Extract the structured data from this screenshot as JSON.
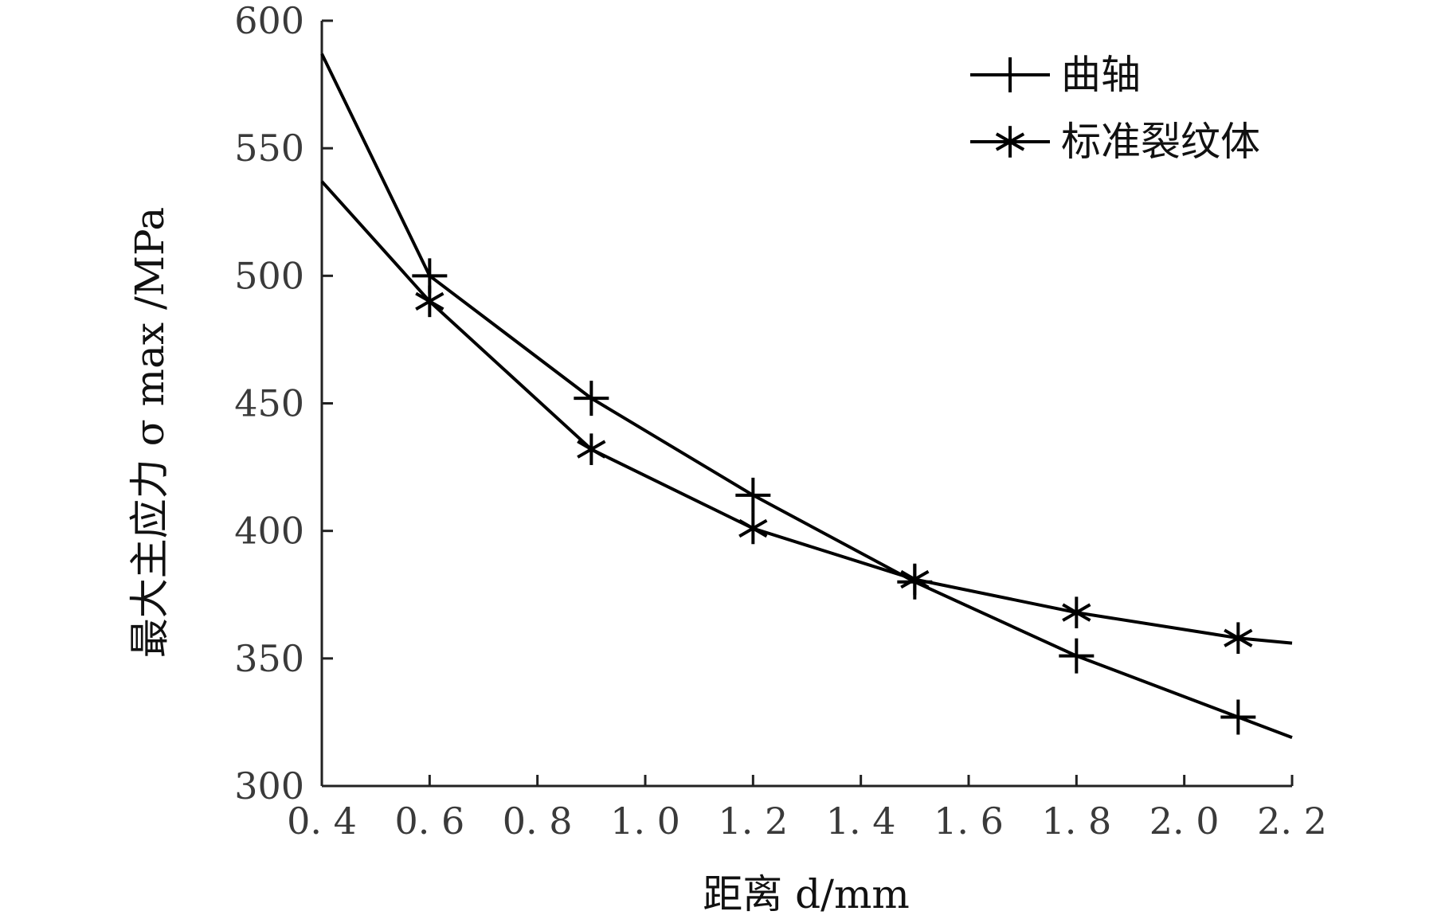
{
  "chart_data": {
    "type": "line",
    "xlabel": "距离 d/mm",
    "ylabel": "最大主应力 σ max /MPa",
    "xlim": [
      0.4,
      2.2
    ],
    "ylim": [
      300,
      600
    ],
    "x_ticks": [
      "0. 4",
      "0. 6",
      "0. 8",
      "1. 0",
      "1. 2",
      "1. 4",
      "1. 6",
      "1. 8",
      "2. 0",
      "2. 2"
    ],
    "y_ticks": [
      "300",
      "350",
      "400",
      "450",
      "500",
      "550",
      "600"
    ],
    "grid": false,
    "legend_position": "top-right",
    "series": [
      {
        "name": "曲轴",
        "marker": "plus",
        "x": [
          0.4,
          0.6,
          0.9,
          1.2,
          1.5,
          1.8,
          2.1,
          2.2
        ],
        "y": [
          587,
          500,
          452,
          414,
          380,
          351,
          327,
          319
        ],
        "marker_x": [
          0.6,
          0.9,
          1.2,
          1.5,
          1.8,
          2.1
        ]
      },
      {
        "name": "标准裂纹体",
        "marker": "asterisk",
        "x": [
          0.4,
          0.6,
          0.9,
          1.2,
          1.5,
          1.8,
          2.1,
          2.2
        ],
        "y": [
          537,
          490,
          432,
          401,
          381,
          368,
          358,
          356
        ],
        "marker_x": [
          0.6,
          0.9,
          1.2,
          1.5,
          1.8,
          2.1
        ]
      }
    ]
  }
}
